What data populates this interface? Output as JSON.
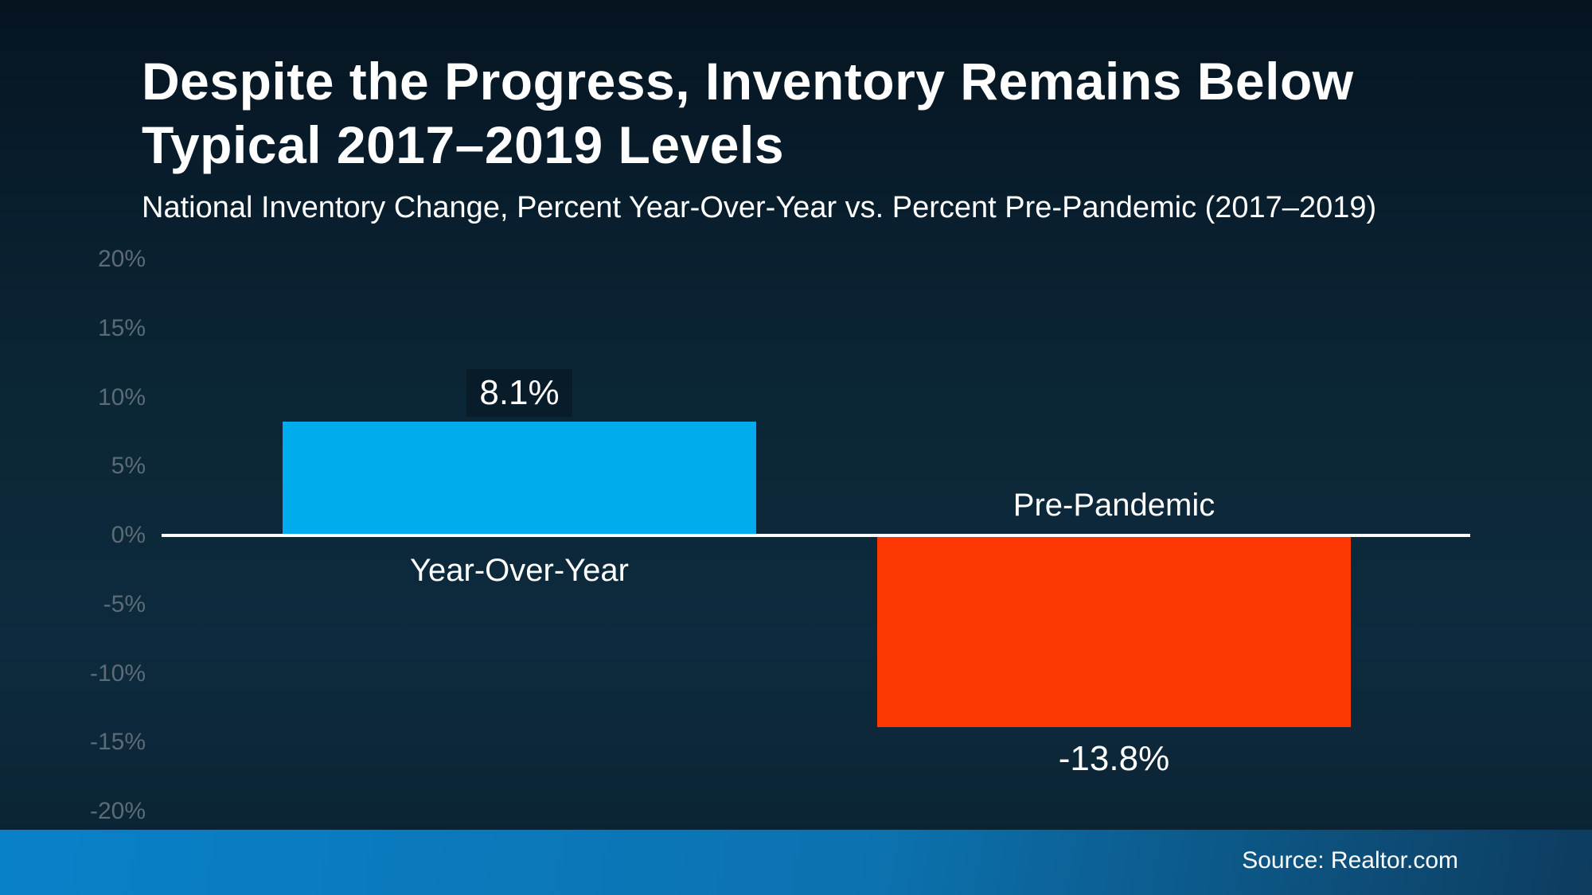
{
  "header": {
    "title_lines": [
      "Despite the Progress, Inventory Remains Below",
      "Typical 2017–2019 Levels"
    ],
    "subtitle": "National Inventory Change, Percent Year-Over-Year vs. Percent Pre-Pandemic (2017–2019)"
  },
  "chart_data": {
    "type": "bar",
    "title": "Despite the Progress, Inventory Remains Below Typical 2017–2019 Levels",
    "subtitle": "National Inventory Change, Percent Year-Over-Year vs. Percent Pre-Pandemic (2017–2019)",
    "categories": [
      "Year-Over-Year",
      "Pre-Pandemic"
    ],
    "values": [
      8.1,
      -13.8
    ],
    "value_labels": [
      "8.1%",
      "-13.8%"
    ],
    "bar_colors": [
      "#00ACEC",
      "#FD3903"
    ],
    "ylim": [
      -20,
      20
    ],
    "yticks": [
      {
        "value": 20,
        "label": "20%"
      },
      {
        "value": 15,
        "label": "15%"
      },
      {
        "value": 10,
        "label": "10%"
      },
      {
        "value": 5,
        "label": "5%"
      },
      {
        "value": 0,
        "label": "0%"
      },
      {
        "value": -5,
        "label": "-5%"
      },
      {
        "value": -10,
        "label": "-10%"
      },
      {
        "value": -15,
        "label": "-15%"
      },
      {
        "value": -20,
        "label": "-20%"
      }
    ],
    "grid": false,
    "legend": "none",
    "zero_line_color": "#FFFFFF",
    "tick_label_color": "#5C6B76",
    "background_color": "#0B2636"
  },
  "footer": {
    "source": "Source: Realtor.com",
    "bar_gradient": [
      "#0981C9",
      "#0D3C5E"
    ]
  }
}
